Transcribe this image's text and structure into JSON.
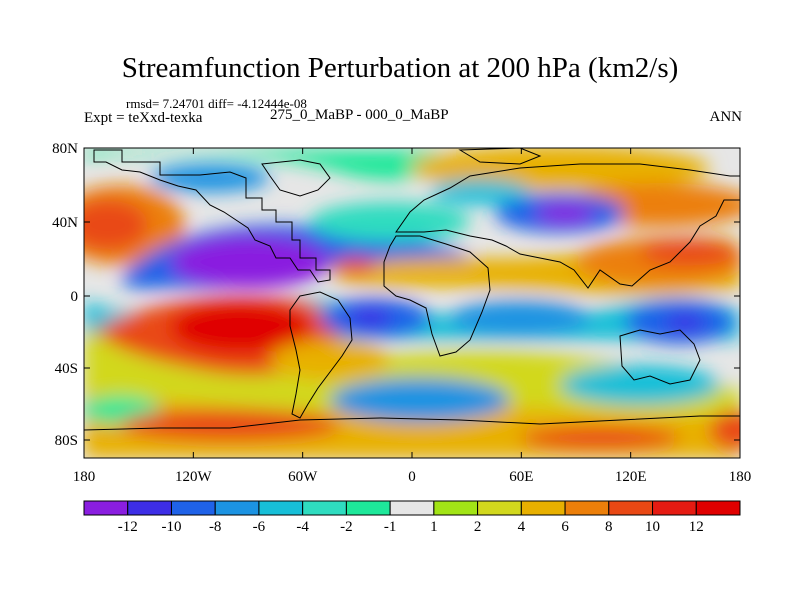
{
  "title": "Streamfunction Perturbation at 200 hPa (km2/s)",
  "stats_line": "rmsd= 7.24701 diff= -4.12444e-08",
  "left_label": "Expt = teXxd-texka",
  "center_label": "275_0_MaBP - 000_0_MaBP",
  "right_label": "ANN",
  "y_ticks": [
    "80N",
    "40N",
    "0",
    "40S",
    "80S"
  ],
  "x_ticks": [
    "180",
    "120W",
    "60W",
    "0",
    "60E",
    "120E",
    "180"
  ],
  "colorbar": {
    "labels": [
      "-12",
      "-10",
      "-8",
      "-6",
      "-4",
      "-2",
      "-1",
      "1",
      "2",
      "4",
      "6",
      "8",
      "10",
      "12"
    ],
    "colors": [
      "#8a1ee0",
      "#3d2ee6",
      "#1f62e8",
      "#1c93e2",
      "#17bfd8",
      "#2fdcc0",
      "#1ee89a",
      "#e6e6e6",
      "#a2e416",
      "#d2d81d",
      "#e8b000",
      "#ec7f0a",
      "#e94814",
      "#e51b12",
      "#e00000"
    ]
  },
  "colors": {
    "land_outline": "#000000",
    "background": "#ffffff",
    "neutral": "#e6e6e6"
  }
}
